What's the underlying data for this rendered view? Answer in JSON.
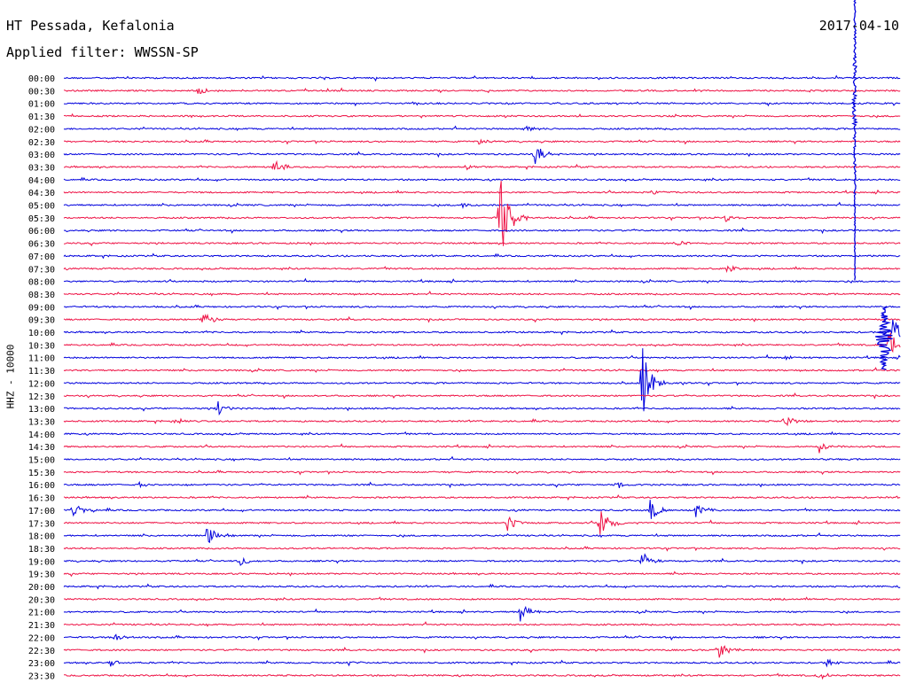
{
  "header": {
    "station": "HT Pessada, Kefalonia",
    "filter": "Applied filter: WWSSN-SP",
    "date": "2017-04-10"
  },
  "channel_label": "HHZ - 10000",
  "colors": {
    "even_trace": "#0000dd",
    "odd_trace": "#ee1144"
  },
  "chart_data": {
    "type": "line",
    "title": "HT Pessada, Kefalonia",
    "subtitle": "Applied filter: WWSSN-SP",
    "date": "2017-04-10",
    "ylabel": "HHZ - 10000",
    "rows": [
      "00:00",
      "00:30",
      "01:00",
      "01:30",
      "02:00",
      "02:30",
      "03:00",
      "03:30",
      "04:00",
      "04:30",
      "05:00",
      "05:30",
      "06:00",
      "06:30",
      "07:00",
      "07:30",
      "08:00",
      "08:30",
      "09:00",
      "09:30",
      "10:00",
      "10:30",
      "11:00",
      "11:30",
      "12:00",
      "12:30",
      "13:00",
      "13:30",
      "14:00",
      "14:30",
      "15:00",
      "15:30",
      "16:00",
      "16:30",
      "17:00",
      "17:30",
      "18:00",
      "18:30",
      "19:00",
      "19:30",
      "20:00",
      "20:30",
      "21:00",
      "21:30",
      "22:00",
      "22:30",
      "23:00",
      "23:30"
    ],
    "row_minutes": 30,
    "events": [
      {
        "row": 1,
        "t": 0.16,
        "amp": 6
      },
      {
        "row": 4,
        "t": 0.55,
        "amp": 5
      },
      {
        "row": 5,
        "t": 0.495,
        "amp": 4
      },
      {
        "row": 6,
        "t": 0.562,
        "amp": 13
      },
      {
        "row": 7,
        "t": 0.25,
        "amp": 14
      },
      {
        "row": 7,
        "t": 0.48,
        "amp": 4
      },
      {
        "row": 9,
        "t": 0.7,
        "amp": 4
      },
      {
        "row": 10,
        "t": 0.475,
        "amp": 4
      },
      {
        "row": 11,
        "t": 0.52,
        "amp": 72
      },
      {
        "row": 11,
        "t": 0.79,
        "amp": 5
      },
      {
        "row": 13,
        "t": 0.73,
        "amp": 6
      },
      {
        "row": 15,
        "t": 0.79,
        "amp": 7
      },
      {
        "row": 19,
        "t": 0.165,
        "amp": 12
      },
      {
        "row": 20,
        "t": 0.99,
        "amp": 18
      },
      {
        "row": 21,
        "t": 0.985,
        "amp": 20
      },
      {
        "row": 22,
        "t": 0.86,
        "amp": 6
      },
      {
        "row": 24,
        "t": 0.69,
        "amp": 46
      },
      {
        "row": 26,
        "t": 0.183,
        "amp": 10
      },
      {
        "row": 27,
        "t": 0.86,
        "amp": 9
      },
      {
        "row": 27,
        "t": 0.13,
        "amp": 4
      },
      {
        "row": 29,
        "t": 0.9,
        "amp": 11
      },
      {
        "row": 32,
        "t": 0.09,
        "amp": 4
      },
      {
        "row": 32,
        "t": 0.66,
        "amp": 4
      },
      {
        "row": 34,
        "t": 0.01,
        "amp": 9
      },
      {
        "row": 34,
        "t": 0.7,
        "amp": 13
      },
      {
        "row": 34,
        "t": 0.755,
        "amp": 8
      },
      {
        "row": 35,
        "t": 0.53,
        "amp": 10
      },
      {
        "row": 35,
        "t": 0.64,
        "amp": 22
      },
      {
        "row": 36,
        "t": 0.17,
        "amp": 11
      },
      {
        "row": 38,
        "t": 0.21,
        "amp": 6
      },
      {
        "row": 38,
        "t": 0.69,
        "amp": 11
      },
      {
        "row": 42,
        "t": 0.545,
        "amp": 15
      },
      {
        "row": 44,
        "t": 0.06,
        "amp": 6
      },
      {
        "row": 45,
        "t": 0.78,
        "amp": 14
      },
      {
        "row": 46,
        "t": 0.055,
        "amp": 5
      },
      {
        "row": 46,
        "t": 0.34,
        "amp": 5
      },
      {
        "row": 46,
        "t": 0.91,
        "amp": 6
      },
      {
        "row": 47,
        "t": 0.9,
        "amp": 6
      }
    ],
    "major_event": {
      "row": 0,
      "t": 0.945,
      "amp": 230,
      "duration_rows": 16
    },
    "major_event_2": {
      "row": 21,
      "t": 0.98,
      "amp": 22
    }
  }
}
